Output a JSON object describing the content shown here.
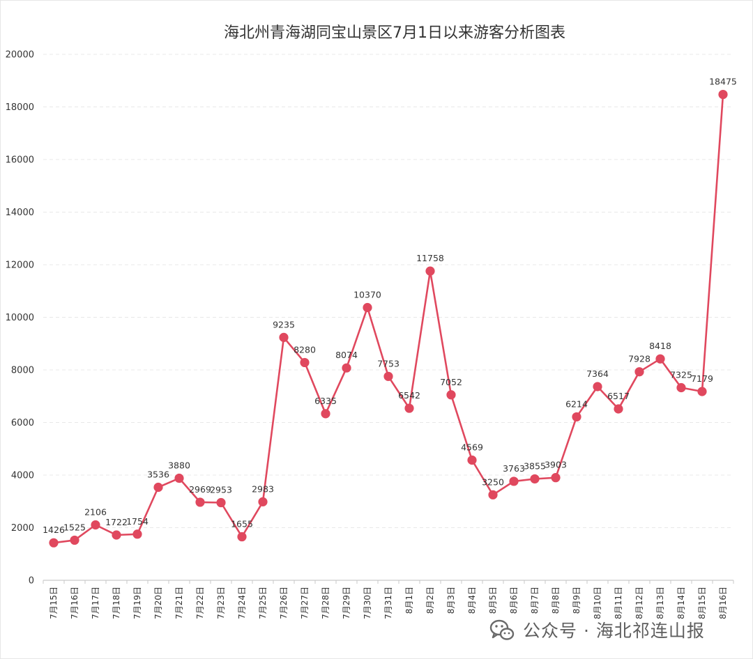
{
  "chart_data": {
    "type": "line",
    "title": "海北州青海湖同宝山景区7月1日以来游客分析图表",
    "categories": [
      "7月15日",
      "7月16日",
      "7月17日",
      "7月18日",
      "7月19日",
      "7月20日",
      "7月21日",
      "7月22日",
      "7月23日",
      "7月24日",
      "7月25日",
      "7月26日",
      "7月27日",
      "7月28日",
      "7月29日",
      "7月30日",
      "7月31日",
      "8月1日",
      "8月2日",
      "8月3日",
      "8月4日",
      "8月5日",
      "8月6日",
      "8月7日",
      "8月8日",
      "8月9日",
      "8月10日",
      "8月11日",
      "8月12日",
      "8月13日",
      "8月14日",
      "8月15日",
      "8月16日"
    ],
    "values": [
      1426,
      1525,
      2106,
      1722,
      1754,
      3536,
      3880,
      2969,
      2953,
      1655,
      2983,
      9235,
      8280,
      6335,
      8074,
      10370,
      7753,
      6542,
      11758,
      7052,
      4569,
      3250,
      3763,
      3855,
      3903,
      6214,
      7364,
      6517,
      7928,
      8418,
      7325,
      7179,
      18475
    ],
    "yticks": [
      0,
      2000,
      4000,
      6000,
      8000,
      10000,
      12000,
      14000,
      16000,
      18000,
      20000
    ],
    "ylim": [
      0,
      20000
    ],
    "grid": true,
    "line_color": "#e0485e"
  },
  "watermark": {
    "text": "公众号 · 海北祁连山报",
    "icon": "wechat-icon"
  }
}
